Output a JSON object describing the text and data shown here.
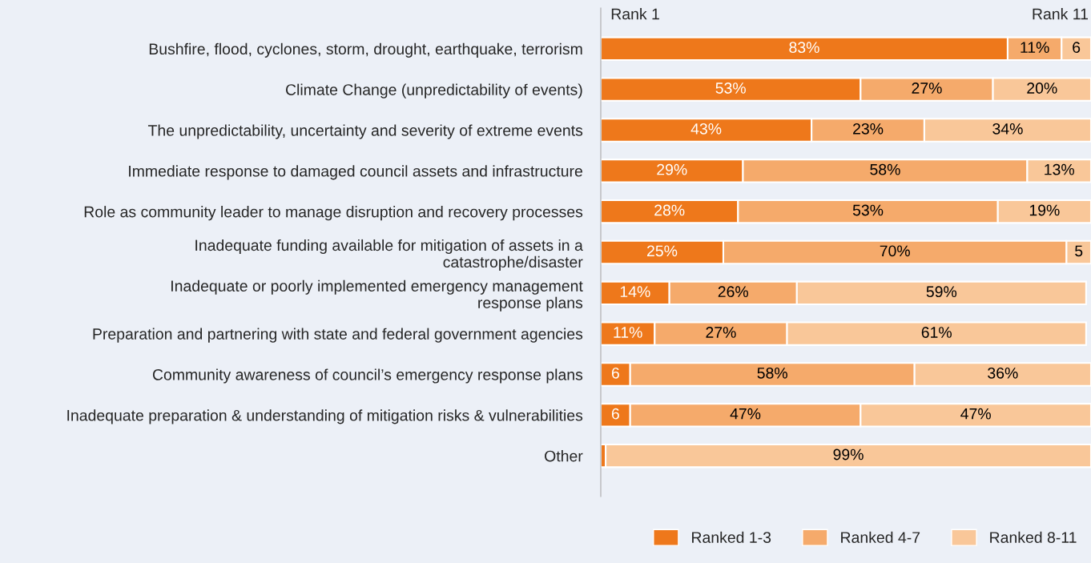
{
  "chart_data": {
    "type": "bar",
    "orientation": "horizontal",
    "stacked": true,
    "categories": [
      "Bushfire, flood, cyclones, storm, drought, earthquake, terrorism",
      "Climate Change (unpredictability of events)",
      "The unpredictability, uncertainty and severity of extreme events",
      "Immediate response to damaged council assets and infrastructure",
      "Role as community leader to manage disruption and recovery processes",
      "Inadequate funding available for mitigation of assets in a\ncatastrophe/disaster",
      "Inadequate or poorly implemented emergency management\nresponse plans",
      "Preparation and partnering with state and federal government agencies",
      "Community awareness of council’s emergency response plans",
      "Inadequate preparation & understanding of mitigation risks & vulnerabilities",
      "Other"
    ],
    "series": [
      {
        "name": "Ranked 1-3",
        "color": "#ee781b",
        "values": [
          83,
          53,
          43,
          29,
          28,
          25,
          14,
          11,
          6,
          6,
          1
        ],
        "value_labels": [
          "83%",
          "53%",
          "43%",
          "29%",
          "28%",
          "25%",
          "14%",
          "11%",
          "6",
          "6",
          null
        ]
      },
      {
        "name": "Ranked 4-7",
        "color": "#f5aa6b",
        "values": [
          11,
          27,
          23,
          58,
          53,
          70,
          26,
          27,
          58,
          47,
          0
        ],
        "value_labels": [
          "11%",
          "27%",
          "23%",
          "58%",
          "53%",
          "70%",
          "26%",
          "27%",
          "58%",
          "47%",
          null
        ]
      },
      {
        "name": "Ranked 8-11",
        "color": "#f9c799",
        "values": [
          6,
          20,
          34,
          13,
          19,
          5,
          59,
          61,
          36,
          47,
          99
        ],
        "value_labels": [
          "6",
          "20%",
          "34%",
          "13%",
          "19%",
          "5",
          "59%",
          "61%",
          "36%",
          "47%",
          "99%"
        ]
      }
    ],
    "annotations": [
      "Rank 1",
      "Rank 11"
    ],
    "legend": "bottom right",
    "grid": false
  }
}
